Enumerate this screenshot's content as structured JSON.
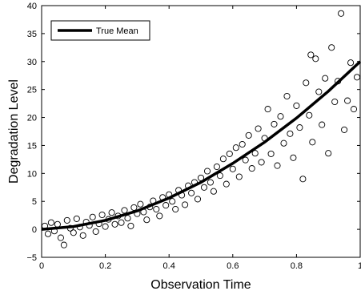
{
  "chart_data": {
    "type": "scatter",
    "title": "",
    "xlabel": "Observation Time",
    "ylabel": "Degradation Level",
    "xlim": [
      0,
      1
    ],
    "ylim": [
      -5,
      40
    ],
    "xticks": [
      0,
      0.2,
      0.4,
      0.6,
      0.8,
      1
    ],
    "xtick_labels": [
      "0",
      "0.2",
      "0.4",
      "0.6",
      "0.8",
      "1"
    ],
    "yticks": [
      -5,
      0,
      5,
      10,
      15,
      20,
      25,
      30,
      35,
      40
    ],
    "ytick_labels": [
      "−5",
      "0",
      "5",
      "10",
      "15",
      "20",
      "25",
      "30",
      "35",
      "40"
    ],
    "grid": false,
    "legend": {
      "position": "top-left",
      "entries": [
        "True Mean"
      ]
    },
    "mean_curve": {
      "name": "True Mean",
      "color": "#000000",
      "x": [
        0,
        0.1,
        0.2,
        0.3,
        0.4,
        0.5,
        0.6,
        0.7,
        0.8,
        0.9,
        1.0
      ],
      "y": [
        0,
        0.5,
        1.6,
        3.3,
        5.6,
        8.4,
        11.8,
        15.6,
        19.9,
        24.7,
        30.0
      ]
    },
    "observations": {
      "marker": "circle",
      "color": "#000000",
      "points": [
        [
          0.01,
          0.6
        ],
        [
          0.02,
          -0.8
        ],
        [
          0.03,
          1.2
        ],
        [
          0.04,
          -0.3
        ],
        [
          0.05,
          0.9
        ],
        [
          0.06,
          -1.5
        ],
        [
          0.07,
          -2.8
        ],
        [
          0.08,
          1.6
        ],
        [
          0.09,
          0.2
        ],
        [
          0.1,
          -0.6
        ],
        [
          0.11,
          1.9
        ],
        [
          0.12,
          0.4
        ],
        [
          0.13,
          -1.1
        ],
        [
          0.14,
          1.3
        ],
        [
          0.15,
          0.7
        ],
        [
          0.16,
          2.2
        ],
        [
          0.17,
          -0.4
        ],
        [
          0.18,
          1.0
        ],
        [
          0.19,
          2.6
        ],
        [
          0.2,
          0.5
        ],
        [
          0.21,
          1.8
        ],
        [
          0.22,
          3.0
        ],
        [
          0.23,
          0.9
        ],
        [
          0.24,
          2.4
        ],
        [
          0.25,
          1.2
        ],
        [
          0.26,
          3.4
        ],
        [
          0.27,
          2.0
        ],
        [
          0.28,
          0.6
        ],
        [
          0.29,
          3.9
        ],
        [
          0.3,
          2.8
        ],
        [
          0.31,
          4.5
        ],
        [
          0.32,
          3.1
        ],
        [
          0.33,
          1.7
        ],
        [
          0.34,
          4.0
        ],
        [
          0.35,
          5.1
        ],
        [
          0.36,
          3.6
        ],
        [
          0.37,
          2.4
        ],
        [
          0.38,
          5.7
        ],
        [
          0.39,
          4.3
        ],
        [
          0.4,
          6.2
        ],
        [
          0.41,
          5.0
        ],
        [
          0.42,
          3.6
        ],
        [
          0.43,
          7.0
        ],
        [
          0.44,
          6.1
        ],
        [
          0.45,
          4.4
        ],
        [
          0.46,
          7.8
        ],
        [
          0.47,
          6.5
        ],
        [
          0.48,
          8.4
        ],
        [
          0.49,
          5.4
        ],
        [
          0.5,
          9.2
        ],
        [
          0.51,
          7.5
        ],
        [
          0.52,
          10.4
        ],
        [
          0.53,
          8.4
        ],
        [
          0.54,
          6.8
        ],
        [
          0.55,
          11.2
        ],
        [
          0.56,
          9.6
        ],
        [
          0.57,
          12.6
        ],
        [
          0.58,
          8.1
        ],
        [
          0.59,
          13.5
        ],
        [
          0.6,
          10.8
        ],
        [
          0.61,
          14.6
        ],
        [
          0.62,
          9.4
        ],
        [
          0.63,
          15.2
        ],
        [
          0.64,
          12.4
        ],
        [
          0.65,
          16.8
        ],
        [
          0.66,
          10.9
        ],
        [
          0.67,
          13.6
        ],
        [
          0.68,
          18.0
        ],
        [
          0.69,
          12.0
        ],
        [
          0.7,
          16.3
        ],
        [
          0.71,
          21.5
        ],
        [
          0.72,
          13.5
        ],
        [
          0.73,
          18.8
        ],
        [
          0.74,
          11.4
        ],
        [
          0.75,
          20.2
        ],
        [
          0.76,
          15.4
        ],
        [
          0.77,
          23.8
        ],
        [
          0.78,
          17.1
        ],
        [
          0.79,
          12.8
        ],
        [
          0.8,
          22.1
        ],
        [
          0.81,
          18.2
        ],
        [
          0.82,
          9.0
        ],
        [
          0.83,
          26.2
        ],
        [
          0.84,
          20.4
        ],
        [
          0.845,
          31.2
        ],
        [
          0.85,
          15.6
        ],
        [
          0.86,
          30.5
        ],
        [
          0.87,
          24.6
        ],
        [
          0.88,
          18.7
        ],
        [
          0.89,
          27.0
        ],
        [
          0.9,
          13.6
        ],
        [
          0.91,
          32.5
        ],
        [
          0.92,
          22.8
        ],
        [
          0.93,
          26.5
        ],
        [
          0.94,
          38.6
        ],
        [
          0.95,
          17.8
        ],
        [
          0.96,
          23.0
        ],
        [
          0.97,
          29.8
        ],
        [
          0.98,
          21.5
        ],
        [
          0.99,
          27.2
        ]
      ]
    }
  }
}
